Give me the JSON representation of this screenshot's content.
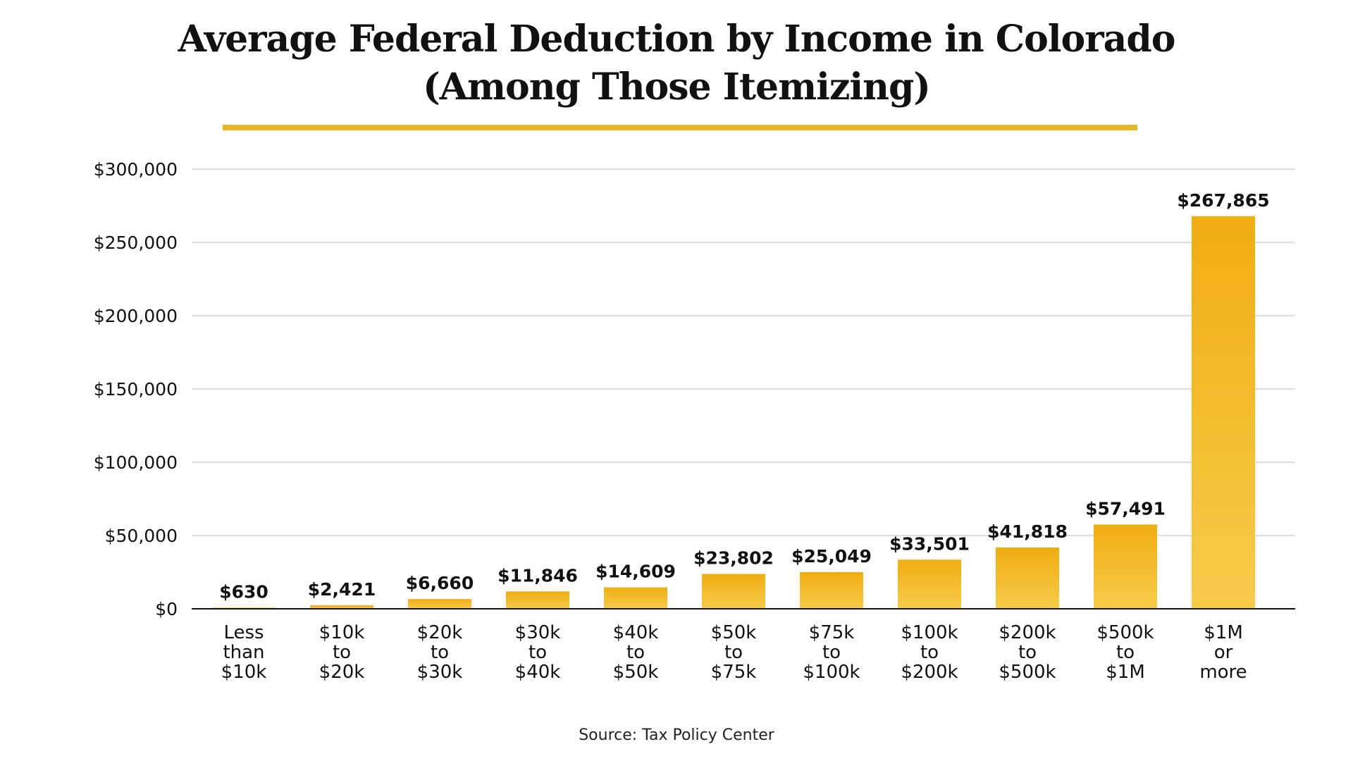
{
  "source": "Source: Tax Policy Center",
  "colors": {
    "bar_light": "#f7cb4a",
    "bar_dark": "#f0ad12",
    "rule": "#e8b524",
    "grid": "#c8c8c8",
    "axis": "#111111"
  },
  "chart_data": {
    "type": "bar",
    "title_lines": [
      "Average Federal Deduction by Income in Colorado",
      "(Among Those Itemizing)"
    ],
    "categories": [
      [
        "Less",
        "than",
        "$10k"
      ],
      [
        "$10k",
        "to",
        "$20k"
      ],
      [
        "$20k",
        "to",
        "$30k"
      ],
      [
        "$30k",
        "to",
        "$40k"
      ],
      [
        "$40k",
        "to",
        "$50k"
      ],
      [
        "$50k",
        "to",
        "$75k"
      ],
      [
        "$75k",
        "to",
        "$100k"
      ],
      [
        "$100k",
        "to",
        "$200k"
      ],
      [
        "$200k",
        "to",
        "$500k"
      ],
      [
        "$500k",
        "to",
        "$1M"
      ],
      [
        "$1M",
        "or",
        "more"
      ]
    ],
    "values": [
      630,
      2421,
      6660,
      11846,
      14609,
      23802,
      25049,
      33501,
      41818,
      57491,
      267865
    ],
    "value_labels": [
      "$630",
      "$2,421",
      "$6,660",
      "$11,846",
      "$14,609",
      "$23,802",
      "$25,049",
      "$33,501",
      "$41,818",
      "$57,491",
      "$267,865"
    ],
    "yticks": [
      0,
      50000,
      100000,
      150000,
      200000,
      250000,
      300000
    ],
    "ytick_labels": [
      "$0",
      "$50,000",
      "$100,000",
      "$150,000",
      "$200,000",
      "$250,000",
      "$300,000"
    ],
    "ylim": [
      0,
      300000
    ],
    "grid": true,
    "xlabel": "",
    "ylabel": ""
  }
}
